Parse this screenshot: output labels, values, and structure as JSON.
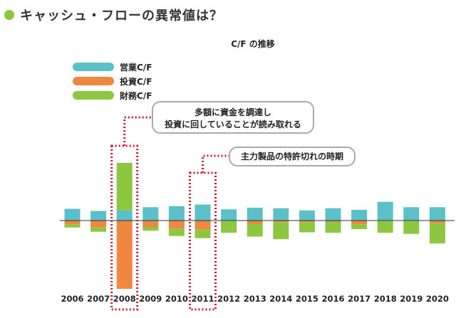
{
  "heading": {
    "text": "キャッシュ・フローの異常値は？"
  },
  "chart_data": {
    "type": "bar",
    "title": "C/F の推移",
    "categories": [
      "2006",
      "2007",
      "2008",
      "2009",
      "2010",
      "2011",
      "2012",
      "2013",
      "2014",
      "2015",
      "2016",
      "2017",
      "2018",
      "2019",
      "2020"
    ],
    "series": [
      {
        "name": "営業C/F",
        "color": "#5bc0c8",
        "values": [
          22,
          18,
          19,
          25,
          27,
          30,
          21,
          24,
          23,
          19,
          23,
          20,
          35,
          25,
          25
        ]
      },
      {
        "name": "投資C/F",
        "color": "#f0863f",
        "values": [
          -7,
          -13,
          -128,
          -12,
          -15,
          -17,
          -1,
          -6,
          -3,
          -3,
          -2,
          -7,
          -1,
          -1,
          -5
        ]
      },
      {
        "name": "財務C/F",
        "color": "#8dc63f",
        "values": [
          -6,
          -8,
          89,
          -7,
          -14,
          -16,
          -22,
          -24,
          -32,
          -19,
          -21,
          -9,
          -22,
          -24,
          -38
        ]
      }
    ],
    "stacking": "positives stacked upward, negatives stacked downward from zero",
    "ylim": [
      -130,
      125
    ],
    "highlighted": [
      "2008",
      "2011"
    ]
  },
  "annotations": {
    "a2008": {
      "line1": "多額に資金を調達し",
      "line2": "投資に回していることが読み取れる"
    },
    "a2011": {
      "text": "主力製品の特許切れの時期"
    }
  },
  "colors": {
    "accent": "#8dc63f",
    "highlight": "#c0202c"
  }
}
